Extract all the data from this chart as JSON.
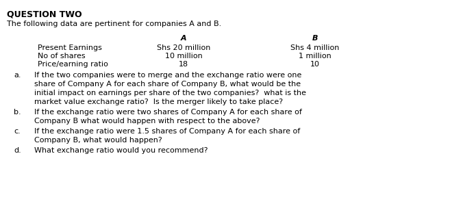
{
  "title": "QUESTION TWO",
  "subtitle": "The following data are pertinent for companies A and B.",
  "col_header_A": "A",
  "col_header_B": "B",
  "row_labels": [
    "Present Earnings",
    "No of shares",
    "Price/earning ratio"
  ],
  "col_A_values": [
    "Shs 20 million",
    "10 million",
    "18"
  ],
  "col_B_values": [
    "Shs 4 million",
    "1 million",
    "10"
  ],
  "qa_lines": [
    "If the two companies were to merge and the exchange ratio were one",
    "share of Company A for each share of Company B, what would be the",
    "initial impact on earnings per share of the two companies?  what is the",
    "market value exchange ratio?  Is the merger likely to take place?"
  ],
  "qb_lines": [
    "If the exchange ratio were two shares of Company A for each share of",
    "Company B what would happen with respect to the above?"
  ],
  "qc_lines": [
    "If the exchange ratio were 1.5 shares of Company A for each share of",
    "Company B, what would happen?"
  ],
  "qd_lines": [
    "What exchange ratio would you recommend?"
  ],
  "bg_color": "#ffffff",
  "text_color": "#000000"
}
